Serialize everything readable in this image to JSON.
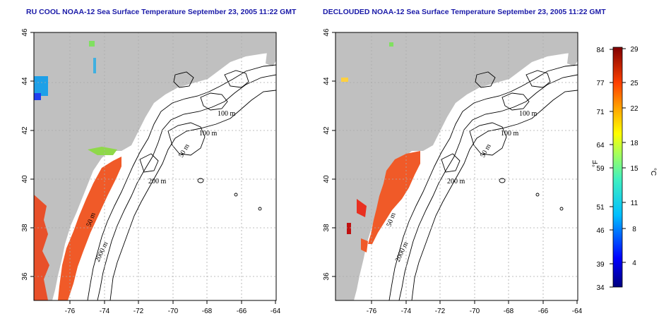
{
  "panels": [
    {
      "title": "RU COOL NOAA-12 Sea Surface Temperature September 23, 2005 11:22 GMT",
      "contour_labels": [
        "100 m",
        "100 m",
        "50 m",
        "200 m",
        "50 m",
        "2000 m"
      ]
    },
    {
      "title": "DECLOUDED NOAA-12 Sea Surface Temperature September 23, 2005 11:22 GMT",
      "contour_labels": [
        "100 m",
        "100 m",
        "50 m",
        "200 m",
        "50 m",
        "2000 m"
      ]
    }
  ],
  "map": {
    "lat_ticks": [
      "46",
      "44",
      "42",
      "40",
      "38",
      "36"
    ],
    "lon_ticks": [
      "-76",
      "-74",
      "-72",
      "-70",
      "-68",
      "-66",
      "-64"
    ],
    "colors": {
      "land": "#c0c0c0",
      "ocean": "#ffffff",
      "grid": "#aaaaaa",
      "warm": "#f05a28"
    }
  },
  "colorbar": {
    "f_label": "°F",
    "c_label": "°C",
    "f_ticks": [
      "84",
      "77",
      "71",
      "64",
      "59",
      "51",
      "46",
      "39",
      "34"
    ],
    "c_ticks": [
      "29",
      "25",
      "22",
      "18",
      "15",
      "11",
      "8",
      "4"
    ]
  }
}
